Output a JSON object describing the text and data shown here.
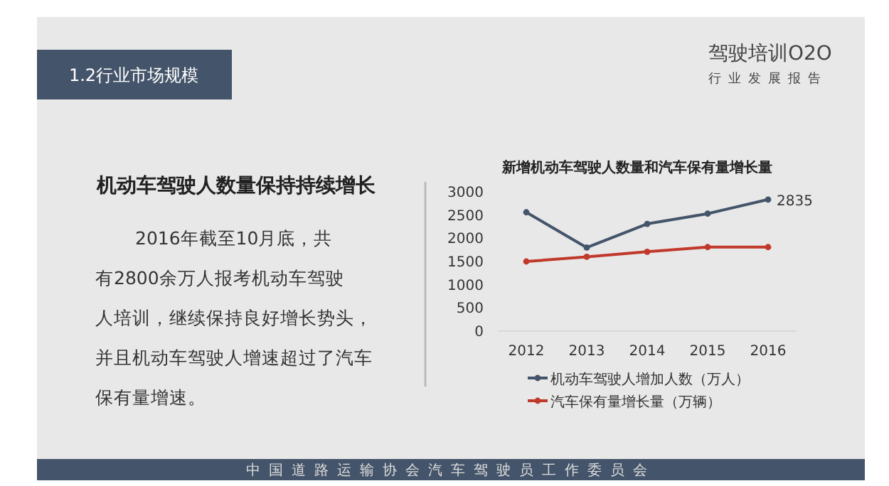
{
  "chart_data": {
    "type": "line",
    "title": "新增机动车驾驶人数量和汽车保有量增长量",
    "categories": [
      "2012",
      "2013",
      "2014",
      "2015",
      "2016"
    ],
    "series": [
      {
        "name": "机动车驾驶人增加人数（万人）",
        "color": "#44546a",
        "values": [
          2560,
          1800,
          2310,
          2530,
          2835
        ],
        "value_labels": [
          null,
          null,
          null,
          null,
          "2835"
        ]
      },
      {
        "name": "汽车保有量增长量（万辆）",
        "color": "#c0392b",
        "values": [
          1500,
          1600,
          1710,
          1810,
          1810
        ]
      }
    ],
    "ylim": [
      0,
      3000
    ],
    "yticks": [
      0,
      500,
      1000,
      1500,
      2000,
      2500,
      3000
    ],
    "grid": false,
    "legend": "bottom",
    "marker": "circle",
    "line_style": "solid",
    "annotations": [
      "1.2行业市场规模",
      "驾驶培训O2O",
      "行业发展报告",
      "机动车驾驶人数量保持持续增长",
      "2016年截至10月底，共有2800余万人报考机动车驾驶人培训，继续保持良好增长势头，并且机动车驾驶人增速超过了汽车保有量增速。",
      "中国道路运输协会汽车驾驶员工作委员会"
    ]
  }
}
